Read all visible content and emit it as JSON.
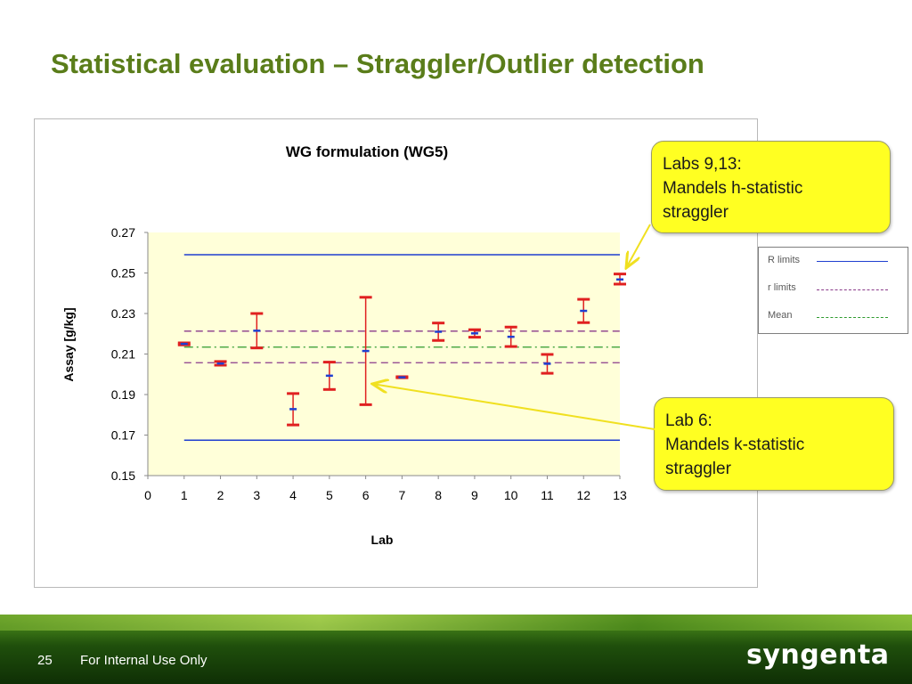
{
  "slide": {
    "title": "Statistical evaluation – Straggler/Outlier detection",
    "page_number": "25",
    "footer_note": "For Internal Use Only",
    "brand": "syngenta"
  },
  "legend": {
    "items": [
      {
        "label": "R limits",
        "color": "#1f3fd0",
        "style": "solid"
      },
      {
        "label": "r limits",
        "color": "#8a3a8a",
        "style": "dashed"
      },
      {
        "label": "Mean",
        "color": "#2e9a2e",
        "style": "dash-dot"
      }
    ]
  },
  "callouts": {
    "top": {
      "lines": [
        "Labs 9,13:",
        "Mandels h-statistic",
        "straggler"
      ]
    },
    "bottom": {
      "lines": [
        "Lab 6:",
        "Mandels k-statistic",
        "straggler"
      ]
    }
  },
  "chart_data": {
    "type": "scatter",
    "title": "WG formulation (WG5)",
    "xlabel": "Lab",
    "ylabel": "Assay [g/kg]",
    "xlim": [
      0,
      13
    ],
    "ylim": [
      0.15,
      0.27
    ],
    "x_ticks": [
      0,
      1,
      2,
      3,
      4,
      5,
      6,
      7,
      8,
      9,
      10,
      11,
      12,
      13
    ],
    "y_ticks": [
      0.15,
      0.17,
      0.19,
      0.21,
      0.23,
      0.25,
      0.27
    ],
    "y_tick_labels": [
      "0.15",
      "0.17",
      "0.19",
      "0.21",
      "0.23",
      "0.25",
      "0.27"
    ],
    "plot_background": "#ffffd9",
    "series": [
      {
        "marker": "range-bar",
        "color": "#e02020",
        "points": [
          {
            "lab": 1,
            "low": 0.2145,
            "high": 0.2155
          },
          {
            "lab": 2,
            "low": 0.2045,
            "high": 0.2063
          },
          {
            "lab": 3,
            "low": 0.213,
            "high": 0.23
          },
          {
            "lab": 4,
            "low": 0.175,
            "high": 0.1905
          },
          {
            "lab": 5,
            "low": 0.1925,
            "high": 0.206
          },
          {
            "lab": 6,
            "low": 0.185,
            "high": 0.238
          },
          {
            "lab": 7,
            "low": 0.1983,
            "high": 0.1988
          },
          {
            "lab": 8,
            "low": 0.2167,
            "high": 0.2253
          },
          {
            "lab": 9,
            "low": 0.2183,
            "high": 0.222
          },
          {
            "lab": 10,
            "low": 0.2137,
            "high": 0.2233
          },
          {
            "lab": 11,
            "low": 0.2005,
            "high": 0.2098
          },
          {
            "lab": 12,
            "low": 0.2255,
            "high": 0.237
          },
          {
            "lab": 13,
            "low": 0.2445,
            "high": 0.2495
          }
        ]
      },
      {
        "marker": "dash",
        "color": "#1f3fd0",
        "points": [
          {
            "lab": 1,
            "mean": 0.215
          },
          {
            "lab": 2,
            "mean": 0.2053
          },
          {
            "lab": 3,
            "mean": 0.2215
          },
          {
            "lab": 4,
            "mean": 0.1828
          },
          {
            "lab": 5,
            "mean": 0.1993
          },
          {
            "lab": 6,
            "mean": 0.2115
          },
          {
            "lab": 7,
            "mean": 0.1985
          },
          {
            "lab": 8,
            "mean": 0.221
          },
          {
            "lab": 9,
            "mean": 0.2202
          },
          {
            "lab": 10,
            "mean": 0.2185
          },
          {
            "lab": 11,
            "mean": 0.2052
          },
          {
            "lab": 12,
            "mean": 0.2313
          },
          {
            "lab": 13,
            "mean": 0.2468
          }
        ]
      }
    ],
    "reference_lines": [
      {
        "legend": "R limits",
        "values": [
          0.259,
          0.1675
        ],
        "from": 1,
        "to": 13,
        "color": "#1f3fd0",
        "style": "solid"
      },
      {
        "legend": "r limits",
        "values": [
          0.2213,
          0.2057
        ],
        "from": 1,
        "to": 13,
        "color": "#8a3a8a",
        "style": "dashed"
      },
      {
        "legend": "Mean",
        "values": [
          0.2134
        ],
        "from": 1,
        "to": 13,
        "color": "#2e9a2e",
        "style": "dash-dot"
      }
    ]
  }
}
